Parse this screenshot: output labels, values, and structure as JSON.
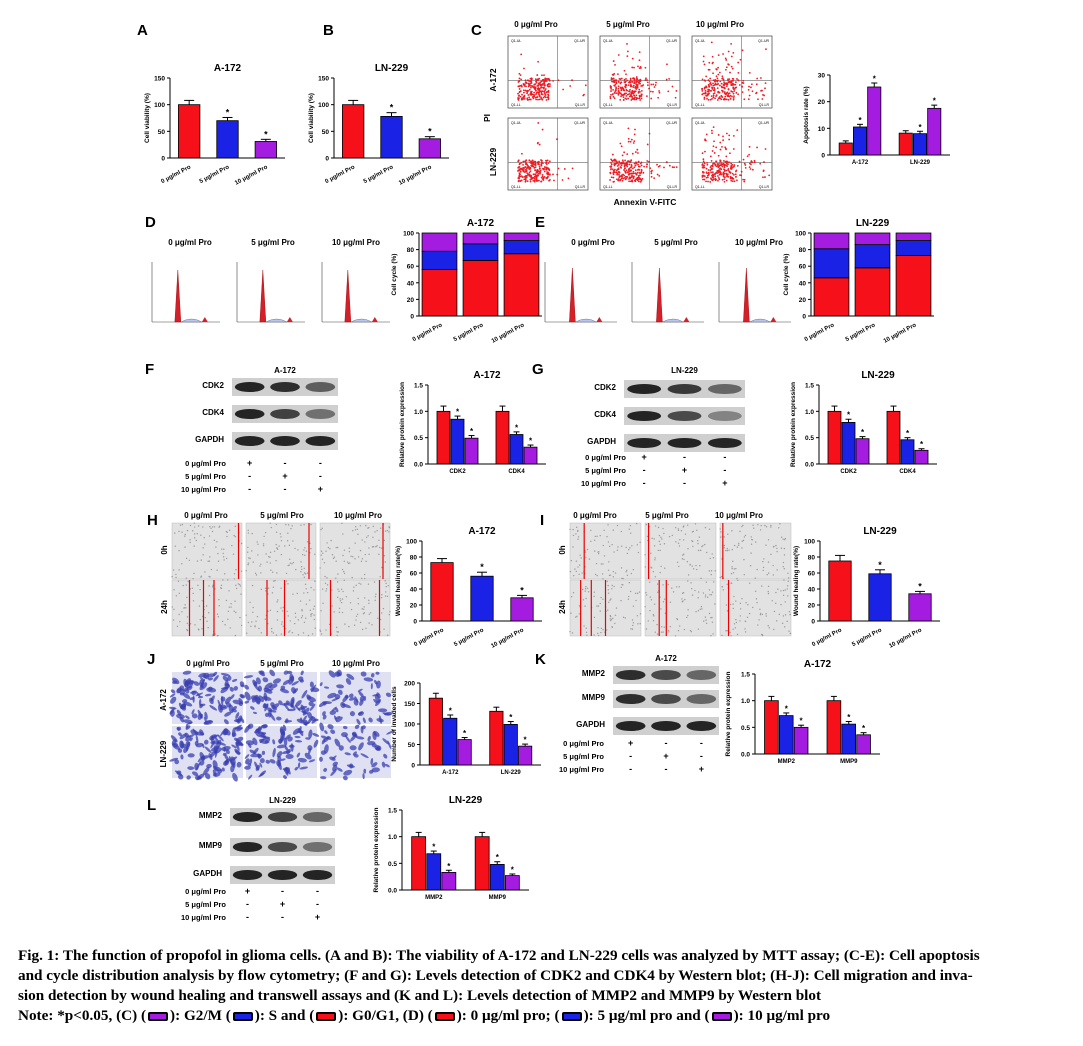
{
  "colors": {
    "red": "#f5101a",
    "blue": "#1a22e6",
    "purple": "#a31ce0",
    "scatter": "#ee1c24",
    "flow": "#d3202a"
  },
  "panel_letters": [
    "A",
    "B",
    "C",
    "D",
    "E",
    "F",
    "G",
    "H",
    "I",
    "J",
    "K",
    "L"
  ],
  "conditions": [
    "0 μg/ml Pro",
    "5 μg/ml Pro",
    "10 μg/ml Pro"
  ],
  "cond_lower": [
    "0 μg/ml Pro",
    "5 μg/ml Pro",
    "10 μg/ml Pro"
  ],
  "cells": [
    "A-172",
    "LN-229"
  ],
  "proteins": {
    "cdk": [
      "CDK2",
      "CDK4",
      "GAPDH"
    ],
    "mmp": [
      "MMP2",
      "MMP9",
      "GAPDH"
    ]
  },
  "signs": [
    [
      "+",
      "-",
      "-"
    ],
    [
      "-",
      "+",
      "-"
    ],
    [
      "-",
      "-",
      "+"
    ]
  ],
  "flow": {
    "ylabel": "PI",
    "xlabel": "Annexin V-FITC",
    "quadrants": [
      "Q1-UL",
      "Q1-UR",
      "Q1-LL",
      "Q1-LR"
    ]
  },
  "wound_times": [
    "0h",
    "24h"
  ],
  "chart_data": [
    {
      "id": "A",
      "type": "bar",
      "title": "A-172",
      "ylabel": "Cell viability (%)",
      "ylim": [
        0,
        150
      ],
      "yticks": [
        0,
        50,
        100,
        150
      ],
      "categories": [
        "0 μg/ml Pro",
        "5 μg/ml Pro",
        "10 μg/ml Pro"
      ],
      "values": [
        100,
        70,
        31
      ],
      "errors": [
        8,
        6,
        4
      ],
      "stars": [
        false,
        true,
        true
      ]
    },
    {
      "id": "B",
      "type": "bar",
      "title": "LN-229",
      "ylabel": "Cell viability (%)",
      "ylim": [
        0,
        150
      ],
      "yticks": [
        0,
        50,
        100,
        150
      ],
      "categories": [
        "0 μg/ml Pro",
        "5 μg/ml Pro",
        "10 μg/ml Pro"
      ],
      "values": [
        100,
        78,
        36
      ],
      "errors": [
        8,
        7,
        4
      ],
      "stars": [
        false,
        true,
        true
      ]
    },
    {
      "id": "C",
      "type": "bar",
      "title": "",
      "ylabel": "Apoptosis rate (%)",
      "ylim": [
        0,
        30
      ],
      "yticks": [
        0,
        10,
        20,
        30
      ],
      "categories": [
        "A-172",
        "LN-229"
      ],
      "series": [
        {
          "values": [
            4.5,
            8.2
          ],
          "errors": [
            0.8,
            0.9
          ]
        },
        {
          "values": [
            10.5,
            8
          ],
          "errors": [
            1,
            0.9
          ]
        },
        {
          "values": [
            25.5,
            17.5
          ],
          "errors": [
            1.5,
            1.2
          ]
        }
      ],
      "stars": [
        [
          false,
          false
        ],
        [
          true,
          true
        ],
        [
          true,
          true
        ]
      ]
    },
    {
      "id": "D",
      "type": "bar",
      "stacked": true,
      "title": "A-172",
      "ylabel": "Cell cycle (%)",
      "ylim": [
        0,
        100
      ],
      "yticks": [
        0,
        20,
        40,
        60,
        80,
        100
      ],
      "categories": [
        "0 μg/ml Pro",
        "5 μg/ml Pro",
        "10 μg/ml Pro"
      ],
      "series": [
        {
          "values": [
            56,
            67,
            75
          ]
        },
        {
          "values": [
            22,
            20,
            16
          ]
        },
        {
          "values": [
            22,
            13,
            9
          ]
        }
      ]
    },
    {
      "id": "E",
      "type": "bar",
      "stacked": true,
      "title": "LN-229",
      "ylabel": "Cell cycle (%)",
      "ylim": [
        0,
        100
      ],
      "yticks": [
        0,
        20,
        40,
        60,
        80,
        100
      ],
      "categories": [
        "0 μg/ml Pro",
        "5 μg/ml Pro",
        "10 μg/ml Pro"
      ],
      "series": [
        {
          "values": [
            46,
            58,
            73
          ]
        },
        {
          "values": [
            35,
            28,
            18
          ]
        },
        {
          "values": [
            19,
            14,
            9
          ]
        }
      ]
    },
    {
      "id": "F",
      "type": "bar",
      "title": "A-172",
      "ylabel": "Relative protein expression",
      "ylim": [
        0,
        1.5
      ],
      "yticks": [
        0.0,
        0.5,
        1.0,
        1.5
      ],
      "categories": [
        "CDK2",
        "CDK4"
      ],
      "series": [
        {
          "values": [
            1.0,
            1.0
          ],
          "errors": [
            0.1,
            0.1
          ]
        },
        {
          "values": [
            0.85,
            0.56
          ],
          "errors": [
            0.06,
            0.05
          ]
        },
        {
          "values": [
            0.49,
            0.32
          ],
          "errors": [
            0.05,
            0.04
          ]
        }
      ],
      "stars": [
        [
          false,
          false
        ],
        [
          true,
          true
        ],
        [
          true,
          true
        ]
      ]
    },
    {
      "id": "G",
      "type": "bar",
      "title": "LN-229",
      "ylabel": "Relative protein expression",
      "ylim": [
        0,
        1.5
      ],
      "yticks": [
        0.0,
        0.5,
        1.0,
        1.5
      ],
      "categories": [
        "CDK2",
        "CDK4"
      ],
      "series": [
        {
          "values": [
            1.0,
            1.0
          ],
          "errors": [
            0.1,
            0.1
          ]
        },
        {
          "values": [
            0.79,
            0.46
          ],
          "errors": [
            0.06,
            0.04
          ]
        },
        {
          "values": [
            0.48,
            0.26
          ],
          "errors": [
            0.04,
            0.03
          ]
        }
      ],
      "stars": [
        [
          false,
          false
        ],
        [
          true,
          true
        ],
        [
          true,
          true
        ]
      ]
    },
    {
      "id": "H",
      "type": "bar",
      "title": "A-172",
      "ylabel": "Wound healing rate(%)",
      "ylim": [
        0,
        100
      ],
      "yticks": [
        0,
        20,
        40,
        60,
        80,
        100
      ],
      "categories": [
        "0 μg/ml Pro",
        "5 μg/ml Pro",
        "10 μg/ml Pro"
      ],
      "values": [
        73,
        56,
        29
      ],
      "errors": [
        5,
        5,
        3
      ],
      "stars": [
        false,
        true,
        true
      ]
    },
    {
      "id": "I",
      "type": "bar",
      "title": "LN-229",
      "ylabel": "Wound healing rate(%)",
      "ylim": [
        0,
        100
      ],
      "yticks": [
        0,
        20,
        40,
        60,
        80,
        100
      ],
      "categories": [
        "0 μg/ml Pro",
        "5 μg/ml Pro",
        "10 μg/ml Pro"
      ],
      "values": [
        75,
        59,
        34
      ],
      "errors": [
        7,
        5,
        3
      ],
      "stars": [
        false,
        true,
        true
      ]
    },
    {
      "id": "J",
      "type": "bar",
      "title": "",
      "ylabel": "Number of invaded cells",
      "ylim": [
        0,
        200
      ],
      "yticks": [
        0,
        50,
        100,
        150,
        200
      ],
      "categories": [
        "A-172",
        "LN-229"
      ],
      "series": [
        {
          "values": [
            163,
            131
          ],
          "errors": [
            12,
            10
          ]
        },
        {
          "values": [
            114,
            99
          ],
          "errors": [
            8,
            7
          ]
        },
        {
          "values": [
            62,
            46
          ],
          "errors": [
            5,
            5
          ]
        }
      ],
      "stars": [
        [
          false,
          false
        ],
        [
          true,
          true
        ],
        [
          true,
          true
        ]
      ]
    },
    {
      "id": "K",
      "type": "bar",
      "title": "A-172",
      "ylabel": "Relative protein expression",
      "ylim": [
        0,
        1.5
      ],
      "yticks": [
        0.0,
        0.5,
        1.0,
        1.5
      ],
      "categories": [
        "MMP2",
        "MMP9"
      ],
      "series": [
        {
          "values": [
            1.0,
            1.0
          ],
          "errors": [
            0.08,
            0.08
          ]
        },
        {
          "values": [
            0.72,
            0.56
          ],
          "errors": [
            0.05,
            0.05
          ]
        },
        {
          "values": [
            0.5,
            0.36
          ],
          "errors": [
            0.04,
            0.04
          ]
        }
      ],
      "stars": [
        [
          false,
          false
        ],
        [
          true,
          true
        ],
        [
          true,
          true
        ]
      ]
    },
    {
      "id": "L",
      "type": "bar",
      "title": "LN-229",
      "ylabel": "Relative protein expression",
      "ylim": [
        0,
        1.5
      ],
      "yticks": [
        0.0,
        0.5,
        1.0,
        1.5
      ],
      "categories": [
        "MMP2",
        "MMP9"
      ],
      "series": [
        {
          "values": [
            1.0,
            1.0
          ],
          "errors": [
            0.08,
            0.08
          ]
        },
        {
          "values": [
            0.68,
            0.48
          ],
          "errors": [
            0.05,
            0.05
          ]
        },
        {
          "values": [
            0.33,
            0.27
          ],
          "errors": [
            0.04,
            0.03
          ]
        }
      ],
      "stars": [
        [
          false,
          false
        ],
        [
          true,
          true
        ],
        [
          true,
          true
        ]
      ]
    }
  ],
  "caption": {
    "line1": "Fig. 1: The function of propofol in glioma cells. (A and B): The viability of A-172 and LN-229 cells was analyzed by MTT assay; (C-E): Cell apoptosis",
    "line2": "and cycle distribution analysis by flow cytometry; (F and G): Levels detection of CDK2 and CDK4 by Western blot; (H-J): Cell migration and inva-",
    "line3": "sion detection by wound healing and transwell assays and (K and L): Levels detection of MMP2 and MMP9 by Western blot",
    "note_a": "Note: *p<0.05, (C) (",
    "note_b": "): G2/M (",
    "note_c": "): S and (",
    "note_d": "): G0/G1, (D) (",
    "note_e": "): 0 μg/ml pro; (",
    "note_f": "): 5 μg/ml pro and (",
    "note_g": "): 10 μg/ml pro"
  }
}
